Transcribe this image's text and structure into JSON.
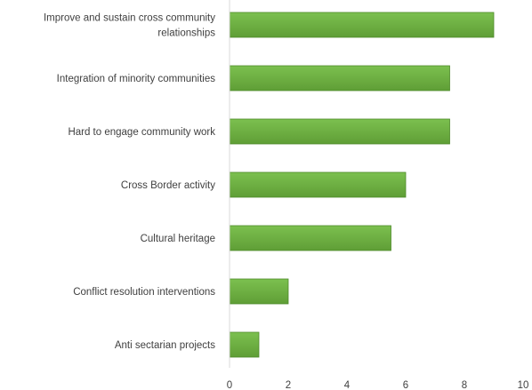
{
  "chart_data": {
    "type": "bar",
    "orientation": "horizontal",
    "categories": [
      [
        "Improve and sustain cross community",
        "relationships"
      ],
      [
        "Integration of minority communities"
      ],
      [
        "Hard to engage community work"
      ],
      [
        "Cross Border activity"
      ],
      [
        "Cultural heritage"
      ],
      [
        "Conflict resolution interventions"
      ],
      [
        "Anti sectarian projects"
      ]
    ],
    "values": [
      9,
      7.5,
      7.5,
      6,
      5.5,
      2,
      1
    ],
    "xlim": [
      0,
      10
    ],
    "xticks": [
      0,
      2,
      4,
      6,
      8,
      10
    ],
    "title": "",
    "xlabel": "",
    "ylabel": "",
    "grid": false,
    "legend": "none",
    "colors": {
      "bar_fill": "#70ad47",
      "bar_stroke": "#4e8a2a",
      "axis": "#d9d9d9",
      "text": "#404040"
    }
  }
}
